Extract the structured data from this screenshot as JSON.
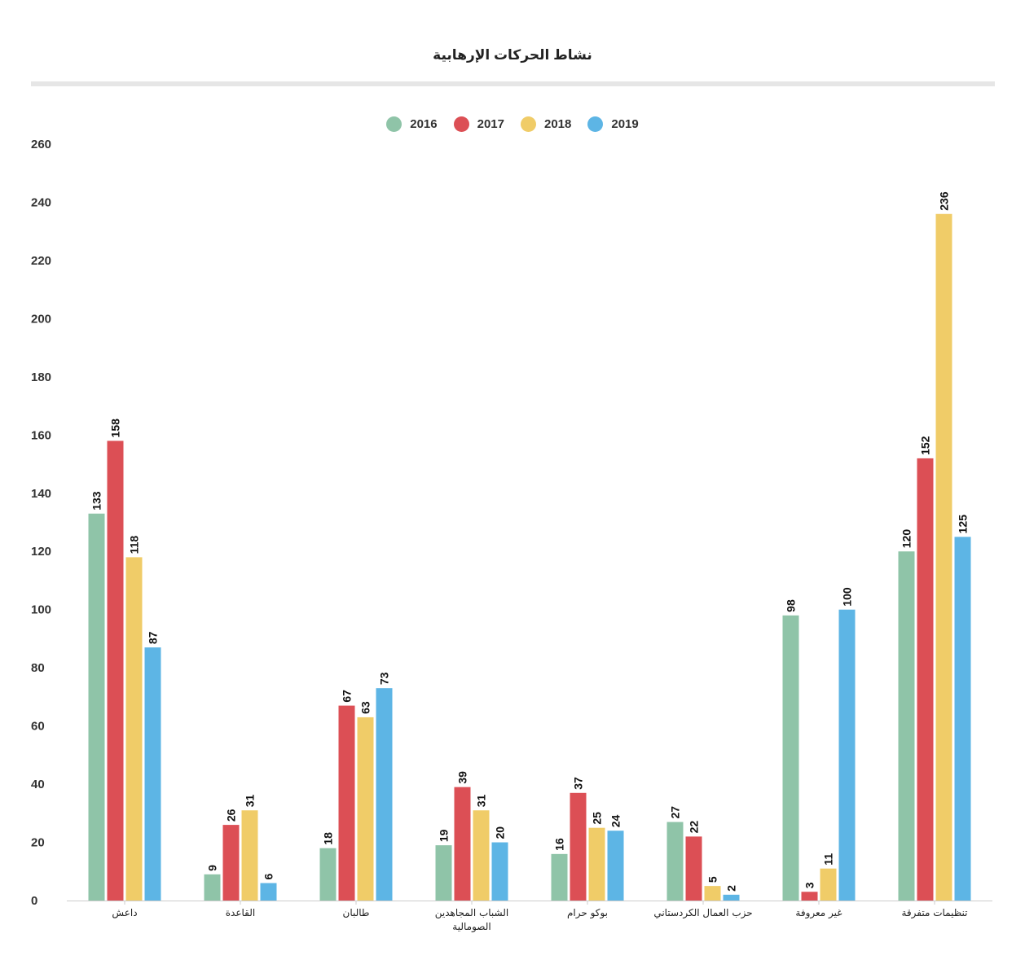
{
  "chart_data": {
    "type": "bar",
    "title": "نشاط الحركات الإرهابية",
    "categories": [
      "داعش",
      "القاعدة",
      "طالبان",
      "الشباب المجاهدين الصومالية",
      "بوكو حرام",
      "حزب العمال الكردستاني",
      "غير معروفة",
      "تنظيمات متفرقة"
    ],
    "category_lines": [
      [
        "داعش"
      ],
      [
        "القاعدة"
      ],
      [
        "طالبان"
      ],
      [
        "الشباب المجاهدين",
        "الصومالية"
      ],
      [
        "بوكو حرام"
      ],
      [
        "حزب العمال الكردستاني"
      ],
      [
        "غير معروفة"
      ],
      [
        "تنظيمات متفرقة"
      ]
    ],
    "series": [
      {
        "name": "2016",
        "color": "#8fc4a8",
        "values": [
          133,
          9,
          18,
          19,
          16,
          27,
          98,
          120
        ]
      },
      {
        "name": "2017",
        "color": "#dc4f55",
        "values": [
          158,
          26,
          67,
          39,
          37,
          22,
          3,
          152
        ]
      },
      {
        "name": "2018",
        "color": "#f0cc68",
        "values": [
          118,
          31,
          63,
          31,
          25,
          5,
          11,
          236
        ]
      },
      {
        "name": "2019",
        "color": "#5db5e5",
        "values": [
          87,
          6,
          73,
          20,
          24,
          2,
          100,
          125
        ]
      }
    ],
    "ylim": [
      0,
      260
    ],
    "yticks": [
      0,
      20,
      40,
      60,
      80,
      100,
      120,
      140,
      160,
      180,
      200,
      220,
      240,
      260
    ],
    "legend_position": "top-center",
    "grid": false
  }
}
